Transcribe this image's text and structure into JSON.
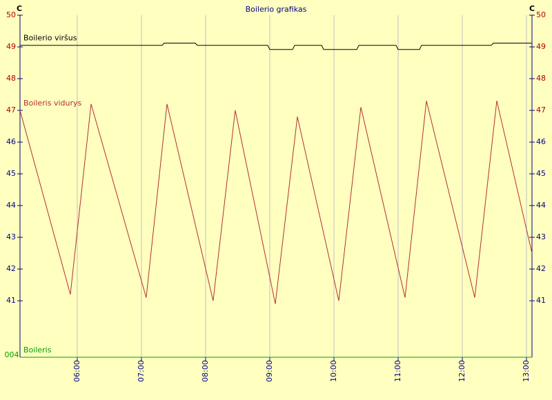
{
  "chart_data": {
    "type": "line",
    "title": "Boilerio grafikas",
    "y_unit": "C",
    "bottom_label": "004",
    "xlim": [
      5.108,
      13.086
    ],
    "xticks": [
      {
        "value": 6,
        "label": "06:00"
      },
      {
        "value": 7,
        "label": "07:00"
      },
      {
        "value": 8,
        "label": "08:00"
      },
      {
        "value": 9,
        "label": "09:00"
      },
      {
        "value": 10,
        "label": "10:00"
      },
      {
        "value": 11,
        "label": "11:00"
      },
      {
        "value": 12,
        "label": "12:00"
      },
      {
        "value": 13,
        "label": "13:00"
      }
    ],
    "ylim": [
      39.22,
      50
    ],
    "yticks": [
      41,
      42,
      43,
      44,
      45,
      46,
      47,
      48,
      49,
      50
    ],
    "grid": true,
    "series": [
      {
        "name": "Boilerio viršus",
        "color": "#000000",
        "x": [
          5.108,
          7.323,
          7.355,
          7.839,
          7.871,
          8.968,
          9.0,
          9.355,
          9.388,
          9.807,
          9.839,
          10.355,
          10.388,
          10.968,
          11.0,
          11.333,
          11.366,
          12.452,
          12.484,
          13.086
        ],
        "values": [
          49.05,
          49.05,
          49.12,
          49.12,
          49.05,
          49.05,
          48.92,
          48.92,
          49.05,
          49.05,
          48.92,
          48.92,
          49.05,
          49.05,
          48.92,
          48.92,
          49.05,
          49.05,
          49.12,
          49.12
        ]
      },
      {
        "name": "Boileris vidurys",
        "color": "#b03030",
        "x": [
          5.108,
          5.893,
          6.215,
          7.075,
          7.398,
          8.118,
          8.462,
          9.086,
          9.43,
          10.075,
          10.419,
          11.108,
          11.441,
          12.194,
          12.538,
          13.086
        ],
        "values": [
          47.0,
          41.2,
          47.2,
          41.1,
          47.2,
          41.0,
          47.0,
          40.9,
          46.8,
          41.0,
          47.1,
          41.1,
          47.3,
          41.1,
          47.3,
          42.5
        ]
      },
      {
        "name": "Boileris",
        "color": "#00a000",
        "x": [
          5.108,
          13.086
        ],
        "values": [
          39.22,
          39.22
        ]
      }
    ]
  }
}
